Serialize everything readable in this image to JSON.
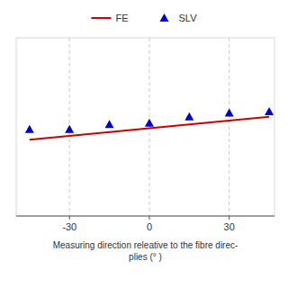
{
  "chart_data": {
    "type": "line",
    "x_label": "Measuring direction releative to the fibre direc-\nplies (°  )",
    "x": [
      -45,
      -30,
      -15,
      0,
      15,
      30,
      45
    ],
    "series": [
      {
        "name": "FE",
        "type": "line",
        "color": "#cc0000",
        "values": [
          0.5,
          0.503,
          0.506,
          0.509,
          0.512,
          0.515,
          0.518
        ]
      },
      {
        "name": "SLV",
        "type": "scatter",
        "color": "#0000cc",
        "marker": "triangle",
        "values": [
          0.508,
          0.508,
          0.512,
          0.513,
          0.518,
          0.521,
          0.522
        ]
      }
    ],
    "xlim": [
      -50,
      47
    ],
    "ylim": [
      0.44,
      0.58
    ],
    "xticks": [
      -30,
      0,
      30
    ],
    "yticks": [],
    "tick_labels": "x",
    "grid": true,
    "legend": "top"
  }
}
